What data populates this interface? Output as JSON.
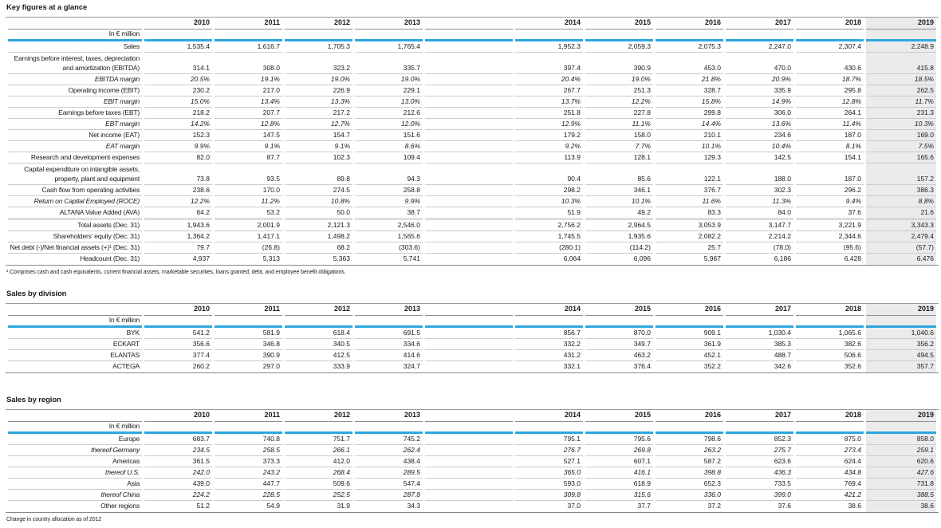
{
  "unit_label": "In € million",
  "years": [
    "2010",
    "2011",
    "2012",
    "2013",
    "2014",
    "2015",
    "2016",
    "2017",
    "2018",
    "2019"
  ],
  "accent_color": "#2ea7df",
  "highlight_column_bg": "#ebebeb",
  "tables": [
    {
      "title": "Key figures at a glance",
      "footnote": "¹ Comprises cash and cash equivalents, current financial assets, marketable securities, loans granted, debt, and employee benefit obligations.",
      "rows": [
        {
          "label": "Sales",
          "style": "normal",
          "values": [
            "1,535.4",
            "1,616.7",
            "1,705.3",
            "1,765.4",
            "1,952.3",
            "2,059.3",
            "2,075.3",
            "2,247.0",
            "2,307.4",
            "2,248.9"
          ]
        },
        {
          "label": "Earnings before interest, taxes, depreciation\nand amortization (EBITDA)",
          "style": "normal",
          "values": [
            "314.1",
            "308.0",
            "323.2",
            "335.7",
            "397.4",
            "390.9",
            "453.0",
            "470.0",
            "430.6",
            "415.8"
          ]
        },
        {
          "label": "EBITDA margin",
          "style": "indent-italic",
          "values": [
            "20.5%",
            "19.1%",
            "19.0%",
            "19.0%",
            "20.4%",
            "19.0%",
            "21.8%",
            "20.9%",
            "18.7%",
            "18.5%"
          ]
        },
        {
          "label": "Operating income (EBIT)",
          "style": "normal",
          "values": [
            "230.2",
            "217.0",
            "226.9",
            "229.1",
            "267.7",
            "251.3",
            "328.7",
            "335.9",
            "295.8",
            "262.5"
          ]
        },
        {
          "label": "EBIT margin",
          "style": "indent-italic",
          "values": [
            "15.0%",
            "13.4%",
            "13.3%",
            "13.0%",
            "13.7%",
            "12.2%",
            "15.8%",
            "14.9%",
            "12.8%",
            "11.7%"
          ]
        },
        {
          "label": "Earnings before taxes (EBT)",
          "style": "normal",
          "values": [
            "218.2",
            "207.7",
            "217.2",
            "212.6",
            "251.8",
            "227.8",
            "299.8",
            "306.0",
            "264.1",
            "231.3"
          ]
        },
        {
          "label": "EBT margin",
          "style": "indent-italic",
          "values": [
            "14.2%",
            "12.8%",
            "12.7%",
            "12.0%",
            "12.9%",
            "11.1%",
            "14.4%",
            "13.6%",
            "11.4%",
            "10.3%"
          ]
        },
        {
          "label": "Net income (EAT)",
          "style": "normal",
          "values": [
            "152.3",
            "147.5",
            "154.7",
            "151.6",
            "179.2",
            "158.0",
            "210.1",
            "234.6",
            "187.0",
            "169.0"
          ]
        },
        {
          "label": "EAT margin",
          "style": "indent-italic",
          "values": [
            "9.9%",
            "9.1%",
            "9.1%",
            "8.6%",
            "9.2%",
            "7.7%",
            "10.1%",
            "10.4%",
            "8.1%",
            "7.5%"
          ]
        },
        {
          "label": "Research and development expenses",
          "style": "normal",
          "values": [
            "82.0",
            "87.7",
            "102.3",
            "109.4",
            "113.9",
            "128.1",
            "129.3",
            "142.5",
            "154.1",
            "165.6"
          ]
        },
        {
          "label": "Capital expenditure on intangible assets,\nproperty, plant and equipment",
          "style": "normal",
          "values": [
            "73.8",
            "93.5",
            "89.8",
            "94.3",
            "90.4",
            "85.6",
            "122.1",
            "188.0",
            "187.0",
            "157.2"
          ]
        },
        {
          "label": "Cash flow from operating activities",
          "style": "normal",
          "values": [
            "238.6",
            "170.0",
            "274.5",
            "258.8",
            "298.2",
            "346.1",
            "376.7",
            "302.3",
            "296.2",
            "386.3"
          ]
        },
        {
          "label": "Return on Capital Employed (ROCE)",
          "style": "italic",
          "values": [
            "12.2%",
            "11.2%",
            "10.8%",
            "9.9%",
            "10.3%",
            "10.1%",
            "11.6%",
            "11.3%",
            "9.4%",
            "8.8%"
          ]
        },
        {
          "label": "ALTANA Value Added (AVA)",
          "style": "normal",
          "values": [
            "64.2",
            "53.2",
            "50.0",
            "38.7",
            "51.9",
            "49.2",
            "83.3",
            "84.0",
            "37.6",
            "21.6"
          ]
        },
        {
          "label": "",
          "style": "spacer",
          "values": [
            "",
            "",
            "",
            "",
            "",
            "",
            "",
            "",
            "",
            ""
          ]
        },
        {
          "label": "Total assets (Dec. 31)",
          "style": "normal",
          "values": [
            "1,943.6",
            "2,001.9",
            "2,121.3",
            "2,546.0",
            "2,756.2",
            "2,964.5",
            "3,053.9",
            "3,147.7",
            "3,221.9",
            "3,343.3"
          ]
        },
        {
          "label": "Shareholders’ equity (Dec. 31)",
          "style": "normal",
          "values": [
            "1,364.2",
            "1,417.1",
            "1,498.2",
            "1,565.6",
            "1,745.5",
            "1,935.6",
            "2,082.2",
            "2,214.2",
            "2,344.6",
            "2,479.4"
          ]
        },
        {
          "label": "Net debt (-)/Net financial assets (+)¹ (Dec. 31)",
          "style": "normal",
          "values": [
            "79.7",
            "(26.8)",
            "68.2",
            "(303.6)",
            "(280.1)",
            "(114.2)",
            "25.7",
            "(78.0)",
            "(95.6)",
            "(57.7)"
          ]
        },
        {
          "label": "Headcount (Dec. 31)",
          "style": "normal",
          "values": [
            "4,937",
            "5,313",
            "5,363",
            "5,741",
            "6,064",
            "6,096",
            "5,967",
            "6,186",
            "6,428",
            "6,476"
          ]
        }
      ]
    },
    {
      "title": "Sales by division",
      "footnote": "",
      "rows": [
        {
          "label": "BYK",
          "style": "normal",
          "values": [
            "541.2",
            "581.9",
            "618.4",
            "691.5",
            "856.7",
            "870.0",
            "909.1",
            "1,030.4",
            "1,065.6",
            "1,040.6"
          ]
        },
        {
          "label": "ECKART",
          "style": "normal",
          "values": [
            "356.6",
            "346.8",
            "340.5",
            "334.6",
            "332.2",
            "349.7",
            "361.9",
            "385.3",
            "382.6",
            "356.2"
          ]
        },
        {
          "label": "ELANTAS",
          "style": "normal",
          "values": [
            "377.4",
            "390.9",
            "412.5",
            "414.6",
            "431.2",
            "463.2",
            "452.1",
            "488.7",
            "506.6",
            "494.5"
          ]
        },
        {
          "label": "ACTEGA",
          "style": "normal",
          "values": [
            "260.2",
            "297.0",
            "333.9",
            "324.7",
            "332.1",
            "376.4",
            "352.2",
            "342.6",
            "352.6",
            "357.7"
          ]
        }
      ]
    },
    {
      "title": "Sales by region",
      "footnote": "Change in country allocation as of 2012",
      "rows": [
        {
          "label": "Europe",
          "style": "normal",
          "values": [
            "683.7",
            "740.8",
            "751.7",
            "745.2",
            "795.1",
            "795.6",
            "798.6",
            "852.3",
            "875.0",
            "858.0"
          ]
        },
        {
          "label": "thereof Germany",
          "style": "indent-italic",
          "values": [
            "234.5",
            "258.5",
            "266.1",
            "262.4",
            "276.7",
            "269.8",
            "263.2",
            "275.7",
            "273.4",
            "259.1"
          ]
        },
        {
          "label": "Americas",
          "style": "normal",
          "values": [
            "361.5",
            "373.3",
            "412.0",
            "438.4",
            "527.1",
            "607.1",
            "587.2",
            "623.6",
            "624.4",
            "620.6"
          ]
        },
        {
          "label": "thereof U.S.",
          "style": "indent-italic",
          "values": [
            "242.0",
            "243.2",
            "268.4",
            "289.5",
            "365.0",
            "416.1",
            "398.8",
            "436.3",
            "434.8",
            "427.6"
          ]
        },
        {
          "label": "Asia",
          "style": "normal",
          "values": [
            "439.0",
            "447.7",
            "509.6",
            "547.4",
            "593.0",
            "618.9",
            "652.3",
            "733.5",
            "769.4",
            "731.8"
          ]
        },
        {
          "label": "thereof China",
          "style": "indent-italic",
          "values": [
            "224.2",
            "228.5",
            "252.5",
            "287.8",
            "309.8",
            "315.6",
            "336.0",
            "399.0",
            "421.2",
            "388.5"
          ]
        },
        {
          "label": "Other regions",
          "style": "normal",
          "values": [
            "51.2",
            "54.9",
            "31.9",
            "34.3",
            "37.0",
            "37.7",
            "37.2",
            "37.6",
            "38.6",
            "38.6"
          ]
        }
      ]
    }
  ]
}
